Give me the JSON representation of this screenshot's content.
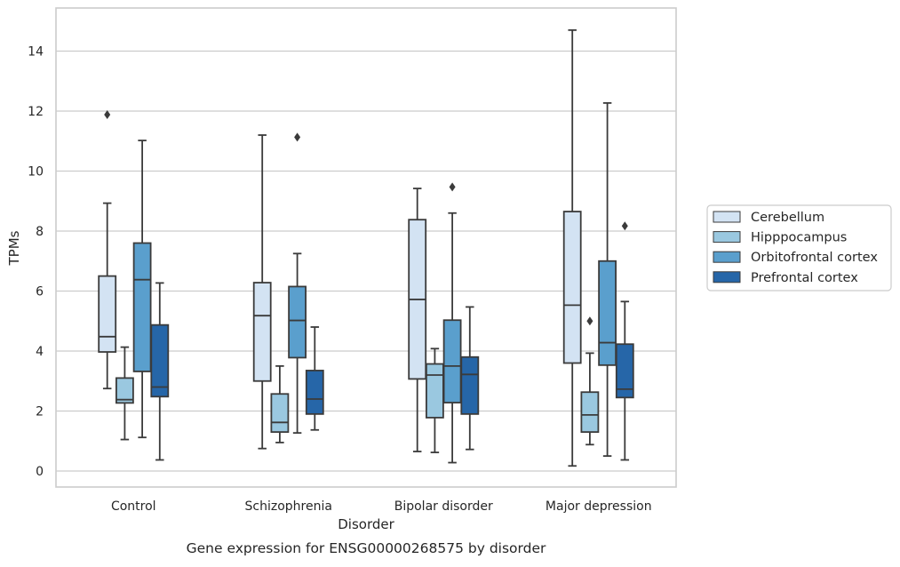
{
  "chart_data": {
    "type": "box",
    "caption": "Gene expression for ENSG00000268575 by disorder",
    "xlabel": "Disorder",
    "ylabel": "TPMs",
    "ylim": [
      -0.5,
      15.4
    ],
    "yticks": [
      0,
      2,
      4,
      6,
      8,
      10,
      12,
      14
    ],
    "grid": "horizontal",
    "legend_placement": "right",
    "categories": [
      "Control",
      "Schizophrenia",
      "Bipolar disorder",
      "Major depression"
    ],
    "series": [
      {
        "name": "Cerebellum",
        "color": "#d3e3f3",
        "boxes": [
          {
            "whisker_low": 2.75,
            "q1": 3.97,
            "median": 4.48,
            "q3": 6.5,
            "whisker_high": 8.93,
            "outliers": [
              11.88
            ]
          },
          {
            "whisker_low": 0.75,
            "q1": 3.0,
            "median": 5.18,
            "q3": 6.28,
            "whisker_high": 11.2,
            "outliers": []
          },
          {
            "whisker_low": 0.65,
            "q1": 3.07,
            "median": 5.72,
            "q3": 8.38,
            "whisker_high": 9.42,
            "outliers": []
          },
          {
            "whisker_low": 0.17,
            "q1": 3.6,
            "median": 5.53,
            "q3": 8.65,
            "whisker_high": 14.7,
            "outliers": []
          }
        ]
      },
      {
        "name": "Hipppocampus",
        "color": "#9ac8e0",
        "boxes": [
          {
            "whisker_low": 1.05,
            "q1": 2.27,
            "median": 2.38,
            "q3": 3.1,
            "whisker_high": 4.13,
            "outliers": []
          },
          {
            "whisker_low": 0.95,
            "q1": 1.3,
            "median": 1.62,
            "q3": 2.57,
            "whisker_high": 3.5,
            "outliers": []
          },
          {
            "whisker_low": 0.62,
            "q1": 1.78,
            "median": 3.2,
            "q3": 3.57,
            "whisker_high": 4.08,
            "outliers": []
          },
          {
            "whisker_low": 0.88,
            "q1": 1.3,
            "median": 1.87,
            "q3": 2.63,
            "whisker_high": 3.93,
            "outliers": [
              5.0
            ]
          }
        ]
      },
      {
        "name": "Orbitofrontal cortex",
        "color": "#5a9fcd",
        "boxes": [
          {
            "whisker_low": 1.12,
            "q1": 3.32,
            "median": 6.38,
            "q3": 7.6,
            "whisker_high": 11.02,
            "outliers": []
          },
          {
            "whisker_low": 1.27,
            "q1": 3.78,
            "median": 5.02,
            "q3": 6.15,
            "whisker_high": 7.25,
            "outliers": [
              11.13
            ]
          },
          {
            "whisker_low": 0.28,
            "q1": 2.28,
            "median": 3.5,
            "q3": 5.03,
            "whisker_high": 8.6,
            "outliers": [
              9.47
            ]
          },
          {
            "whisker_low": 0.5,
            "q1": 3.53,
            "median": 4.28,
            "q3": 7.0,
            "whisker_high": 12.27,
            "outliers": []
          }
        ]
      },
      {
        "name": "Prefrontal cortex",
        "color": "#2666a8",
        "boxes": [
          {
            "whisker_low": 0.37,
            "q1": 2.48,
            "median": 2.8,
            "q3": 4.87,
            "whisker_high": 6.27,
            "outliers": []
          },
          {
            "whisker_low": 1.37,
            "q1": 1.9,
            "median": 2.4,
            "q3": 3.35,
            "whisker_high": 4.8,
            "outliers": []
          },
          {
            "whisker_low": 0.72,
            "q1": 1.9,
            "median": 3.22,
            "q3": 3.8,
            "whisker_high": 5.47,
            "outliers": []
          },
          {
            "whisker_low": 0.37,
            "q1": 2.45,
            "median": 2.73,
            "q3": 4.23,
            "whisker_high": 5.65,
            "outliers": [
              8.17
            ]
          }
        ]
      }
    ]
  }
}
